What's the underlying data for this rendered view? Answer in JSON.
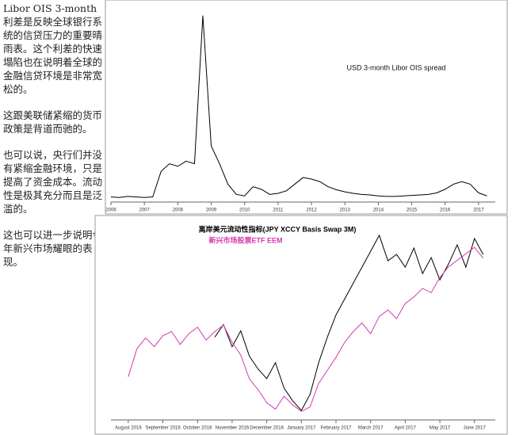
{
  "text": {
    "paragraphs": [
      "Libor OIS 3-month 利差是反映全球银行系统的信贷压力的重要晴雨表。这个利差的快速塌陷也在说明着全球的金融信贷环境是非常宽松的。",
      "这跟美联储紧缩的货币政策是背道而驰的。",
      "也可以说，央行们并没有紧缩金融环境，只是提高了资金成本。流动性是极其充分而且是泛滥的。",
      "这也可以进一步说明今年新兴市场耀眼的表现。"
    ]
  },
  "chart_data": [
    {
      "type": "line",
      "title": "USD 3-month Libor OIS spread",
      "xlim": [
        2006,
        2017.5
      ],
      "xticks": [
        2006,
        2007,
        2008,
        2009,
        2010,
        2011,
        2012,
        2013,
        2014,
        2015,
        2016,
        2017
      ],
      "ylim": [
        0,
        380
      ],
      "series": [
        {
          "color": "#000000",
          "x": [
            2006,
            2006.25,
            2006.5,
            2006.75,
            2007,
            2007.25,
            2007.5,
            2007.75,
            2008,
            2008.25,
            2008.5,
            2008.75,
            2009,
            2009.25,
            2009.5,
            2009.75,
            2010,
            2010.25,
            2010.5,
            2010.75,
            2011,
            2011.25,
            2011.5,
            2011.75,
            2012,
            2012.25,
            2012.5,
            2012.75,
            2013,
            2013.25,
            2013.5,
            2013.75,
            2014,
            2014.25,
            2014.5,
            2014.75,
            2015,
            2015.25,
            2015.5,
            2015.75,
            2016,
            2016.25,
            2016.5,
            2016.75,
            2017,
            2017.25
          ],
          "values": [
            10,
            9,
            11,
            10,
            9,
            10,
            60,
            75,
            70,
            80,
            75,
            365,
            110,
            75,
            35,
            15,
            12,
            30,
            25,
            15,
            17,
            22,
            35,
            48,
            45,
            40,
            30,
            24,
            20,
            17,
            15,
            14,
            12,
            11,
            11,
            12,
            13,
            14,
            15,
            18,
            25,
            35,
            40,
            35,
            18,
            12
          ]
        }
      ]
    },
    {
      "type": "line",
      "xlim": [
        -0.5,
        10.6
      ],
      "xticks": [
        {
          "value": 0,
          "label": "August 2016"
        },
        {
          "value": 1,
          "label": "September 2016"
        },
        {
          "value": 2,
          "label": "October 2016"
        },
        {
          "value": 3,
          "label": "November 2016"
        },
        {
          "value": 4,
          "label": "December 2016"
        },
        {
          "value": 5,
          "label": "January 2017"
        },
        {
          "value": 6,
          "label": "February 2017"
        },
        {
          "value": 7,
          "label": "March 2017"
        },
        {
          "value": 8,
          "label": "April 2017"
        },
        {
          "value": 9,
          "label": "May 2017"
        },
        {
          "value": 10,
          "label": "June 2017"
        }
      ],
      "ylim": [
        33.5,
        42.5
      ],
      "y2lim": [
        -88,
        -27
      ],
      "series": [
        {
          "name": "离岸美元流动性指标(JPY XCCY Basis Swap 3M)",
          "color": "#000000",
          "axis": "y2",
          "x": [
            2.5,
            2.75,
            3,
            3.25,
            3.5,
            3.75,
            4,
            4.25,
            4.5,
            4.75,
            5,
            5.25,
            5.5,
            5.75,
            6,
            6.25,
            6.5,
            6.75,
            7,
            7.25,
            7.5,
            7.75,
            8,
            8.25,
            8.5,
            8.75,
            9,
            9.25,
            9.5,
            9.75,
            10,
            10.25
          ],
          "values": [
            -62,
            -58,
            -65,
            -60,
            -68,
            -72,
            -75,
            -70,
            -78,
            -82,
            -85,
            -80,
            -70,
            -62,
            -55,
            -50,
            -45,
            -40,
            -35,
            -30,
            -38,
            -36,
            -40,
            -34,
            -42,
            -37,
            -44,
            -39,
            -33,
            -40,
            -31,
            -36
          ]
        },
        {
          "name": "新兴市场股票ETF EEM",
          "color": "#d63ab0",
          "x": [
            0,
            0.25,
            0.5,
            0.75,
            1,
            1.25,
            1.5,
            1.75,
            2,
            2.25,
            2.5,
            2.75,
            3,
            3.25,
            3.5,
            3.75,
            4,
            4.25,
            4.5,
            4.75,
            5,
            5.25,
            5.5,
            5.75,
            6,
            6.25,
            6.5,
            6.75,
            7,
            7.25,
            7.5,
            7.75,
            8,
            8.25,
            8.5,
            8.75,
            9,
            9.25,
            9.5,
            9.75,
            10,
            10.25
          ],
          "values": [
            35.5,
            36.8,
            37.3,
            36.9,
            37.4,
            37.6,
            37.0,
            37.5,
            37.8,
            37.2,
            37.6,
            37.9,
            37.1,
            36.5,
            35.4,
            34.9,
            34.3,
            34.0,
            34.6,
            34.2,
            33.9,
            34.1,
            35.2,
            35.8,
            36.4,
            37.1,
            37.6,
            38.0,
            37.5,
            38.3,
            38.6,
            38.2,
            38.9,
            39.2,
            39.6,
            39.4,
            40.1,
            40.6,
            40.9,
            41.2,
            41.5,
            41.0
          ]
        }
      ]
    }
  ]
}
